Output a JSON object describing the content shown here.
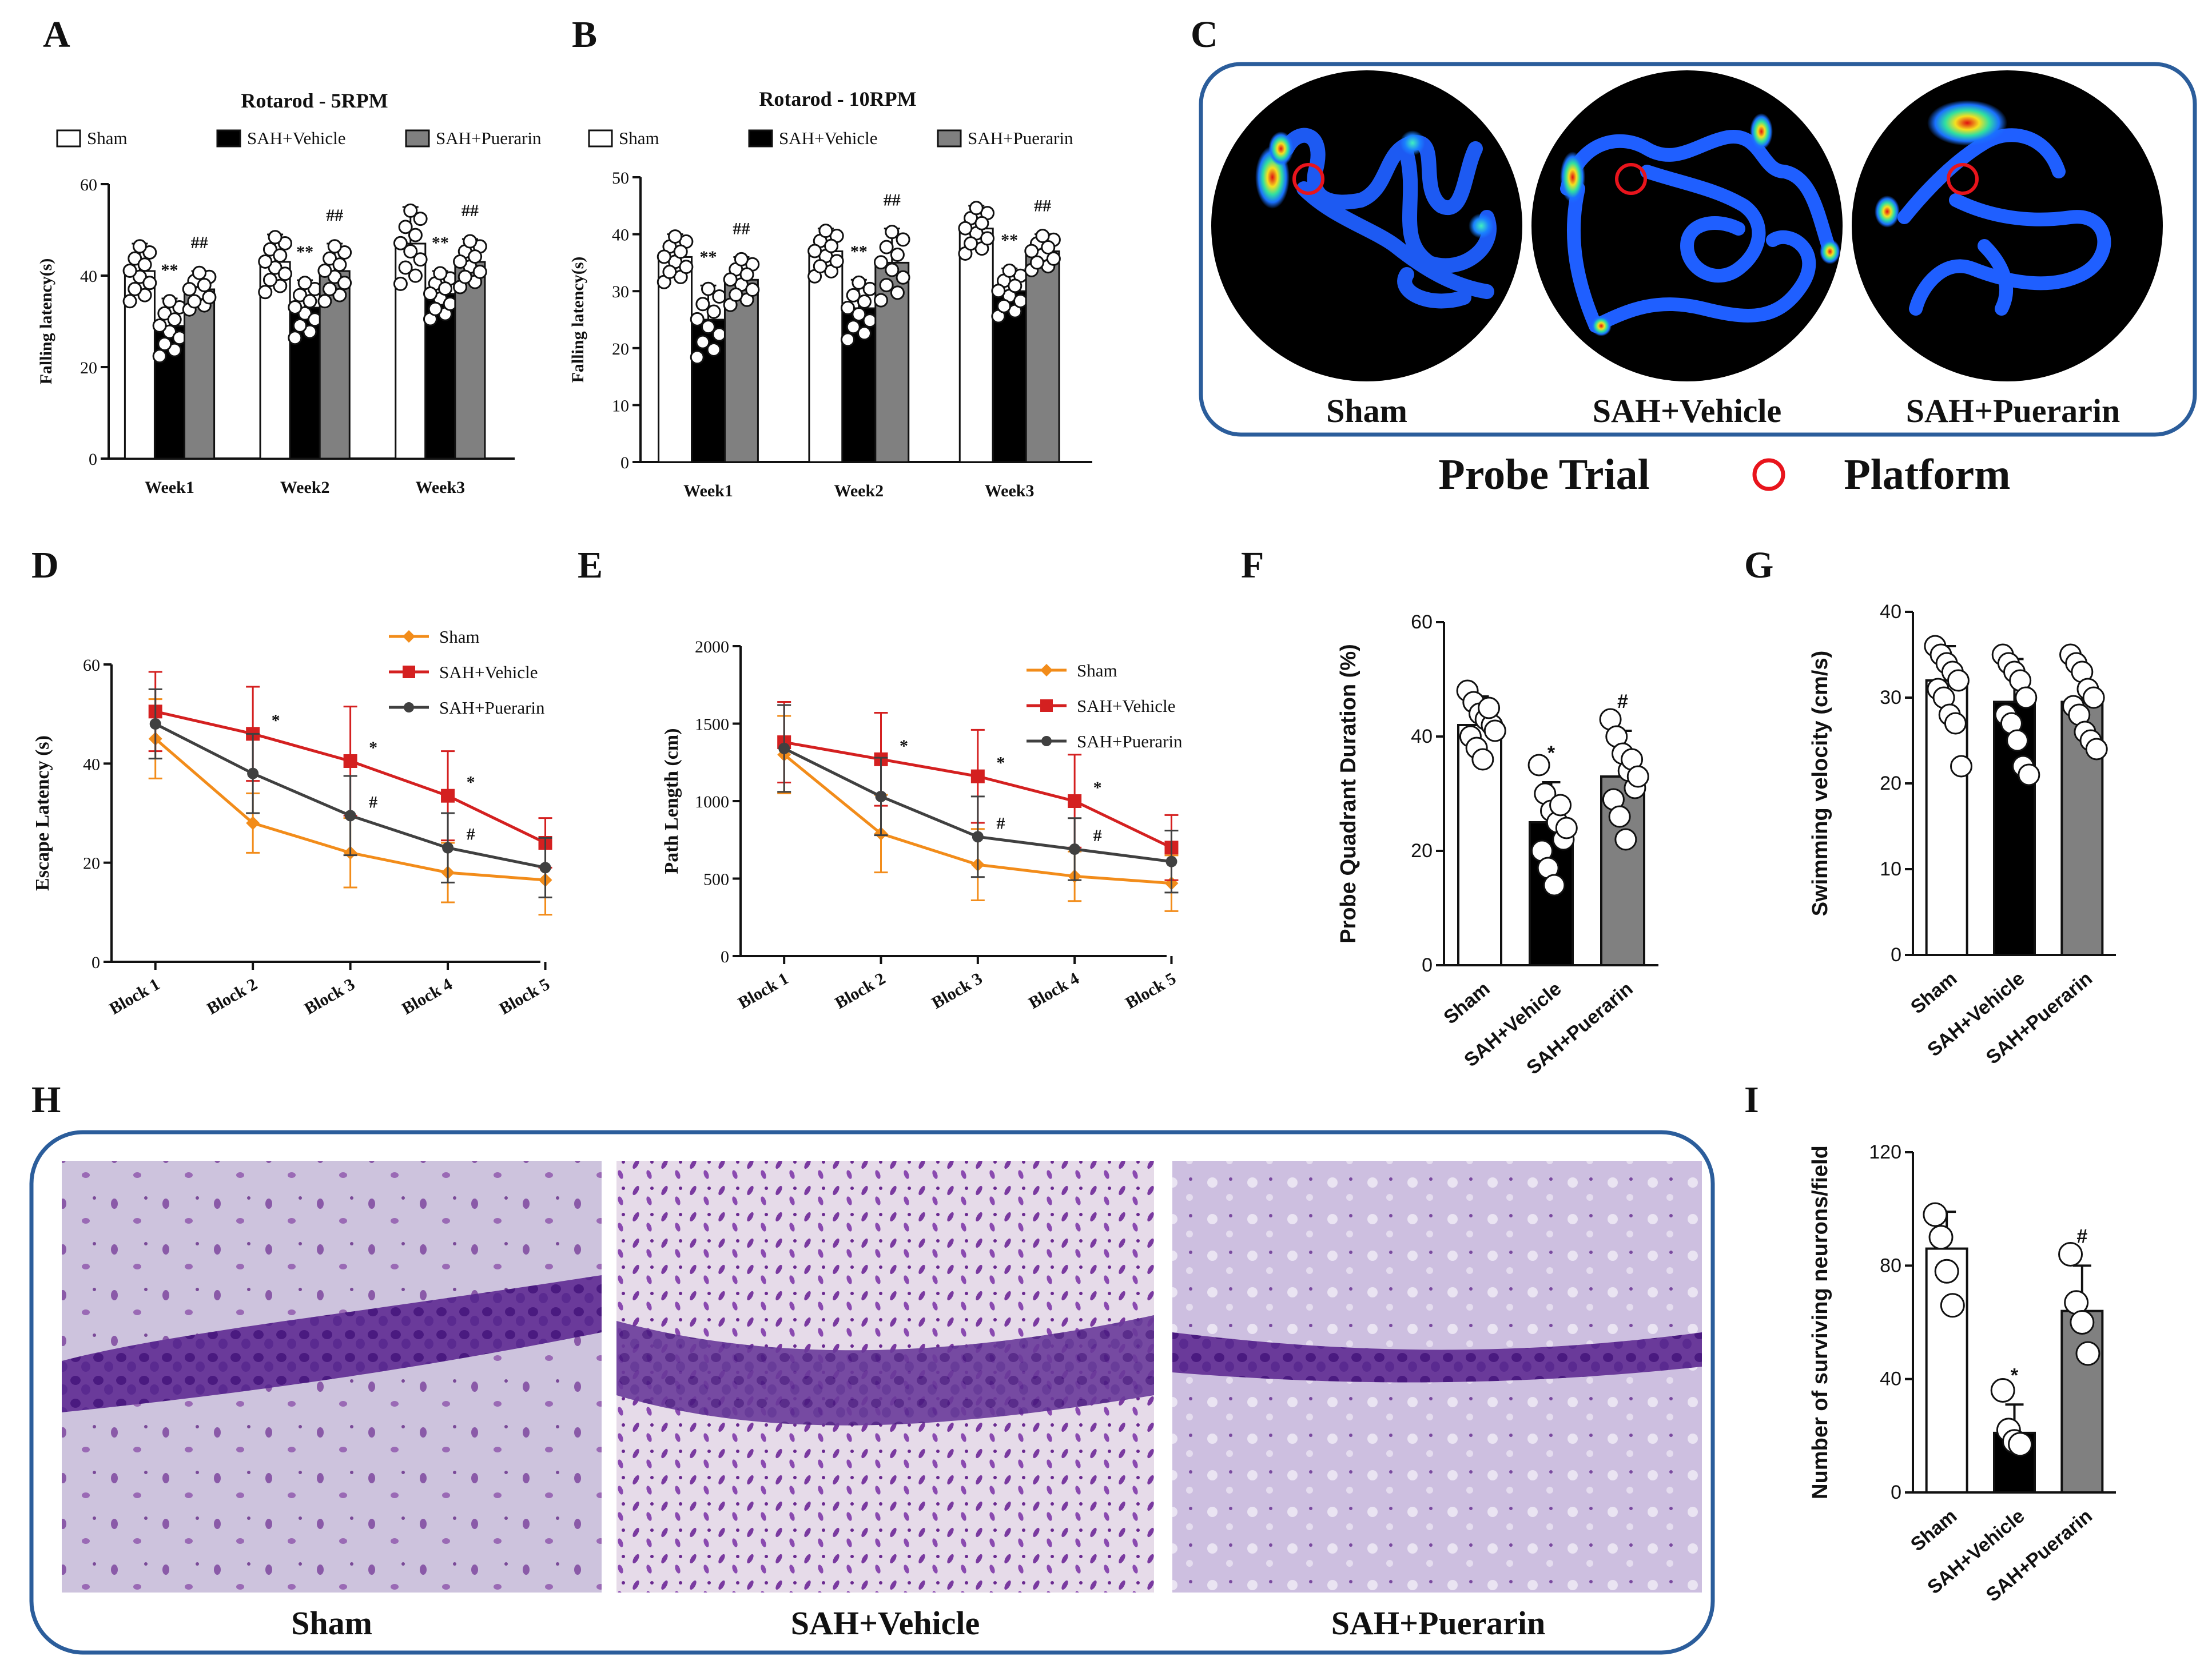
{
  "panels": {
    "A": "A",
    "B": "B",
    "C": "C",
    "D": "D",
    "E": "E",
    "F": "F",
    "G": "G",
    "H": "H",
    "I": "I"
  },
  "groups": [
    "Sham",
    "SAH+Vehicle",
    "SAH+Puerarin"
  ],
  "colors": {
    "sham": "#ffffff",
    "vehicle": "#000000",
    "puerarin": "#808080",
    "line_sham": "#f28c1a",
    "line_vehicle": "#d42020",
    "line_puerarin": "#404040",
    "frame": "#2b5d9b",
    "platform": "#e8141c"
  },
  "heatmap": {
    "labels": [
      "Sham",
      "SAH+Vehicle",
      "SAH+Puerarin"
    ],
    "footer_left": "Probe Trial",
    "footer_right": "Platform"
  },
  "histology": {
    "labels": [
      "Sham",
      "SAH+Vehicle",
      "SAH+Puerarin"
    ]
  },
  "chart_data": [
    {
      "id": "A",
      "type": "bar",
      "title": "Rotarod - 5RPM",
      "ylabel": "Falling latency(s)",
      "xlabel": "",
      "categories": [
        "Week1",
        "Week2",
        "Week3"
      ],
      "ylim": [
        0,
        60
      ],
      "yticks": [
        0,
        20,
        40,
        60
      ],
      "legend": [
        "Sham",
        "SAH+Vehicle",
        "SAH+Puerarin"
      ],
      "series": [
        {
          "name": "Sham",
          "values": [
            41,
            43,
            47
          ],
          "err": [
            6,
            6,
            8
          ]
        },
        {
          "name": "SAH+Vehicle",
          "values": [
            29,
            33,
            36
          ],
          "err": [
            6,
            6,
            5
          ]
        },
        {
          "name": "SAH+Puerarin",
          "values": [
            37,
            41,
            43
          ],
          "err": [
            4,
            6,
            5
          ]
        }
      ],
      "annotations": [
        [
          "",
          "**",
          "##"
        ],
        [
          "",
          "**",
          "##"
        ],
        [
          "",
          "**",
          "##"
        ]
      ]
    },
    {
      "id": "B",
      "type": "bar",
      "title": "Rotarod - 10RPM",
      "ylabel": "Falling latency(s)",
      "xlabel": "",
      "categories": [
        "Week1",
        "Week2",
        "Week3"
      ],
      "ylim": [
        0,
        50
      ],
      "yticks": [
        0,
        10,
        20,
        30,
        40,
        50
      ],
      "legend": [
        "Sham",
        "SAH+Vehicle",
        "SAH+Puerarin"
      ],
      "series": [
        {
          "name": "Sham",
          "values": [
            36,
            37,
            41
          ],
          "err": [
            4,
            4,
            4
          ]
        },
        {
          "name": "SAH+Vehicle",
          "values": [
            25,
            27,
            30
          ],
          "err": [
            6,
            5,
            4
          ]
        },
        {
          "name": "SAH+Puerarin",
          "values": [
            32,
            35,
            37
          ],
          "err": [
            4,
            6,
            3
          ]
        }
      ],
      "annotations": [
        [
          "",
          "**",
          "##"
        ],
        [
          "",
          "**",
          "##"
        ],
        [
          "",
          "**",
          "##"
        ]
      ]
    },
    {
      "id": "D",
      "type": "line",
      "title": "",
      "ylabel": "Escape Latency (s)",
      "xlabel": "",
      "x": [
        "Block 1",
        "Block 2",
        "Block 3",
        "Block 4",
        "Block 5"
      ],
      "ylim": [
        0,
        60
      ],
      "yticks": [
        0,
        20,
        40,
        60
      ],
      "series": [
        {
          "name": "Sham",
          "values": [
            45,
            28,
            22,
            18,
            16.5
          ],
          "err": [
            8,
            6,
            7,
            6,
            7
          ]
        },
        {
          "name": "SAH+Vehicle",
          "values": [
            50.5,
            46,
            40.5,
            33.5,
            24
          ],
          "err": [
            8,
            9.5,
            11,
            9,
            5
          ]
        },
        {
          "name": "SAH+Puerarin",
          "values": [
            48,
            38,
            29.5,
            23,
            19
          ],
          "err": [
            7,
            8,
            8,
            7,
            6
          ]
        }
      ],
      "annotations": [
        {
          "x": "Block 2",
          "text": "*"
        },
        {
          "x": "Block 3",
          "text": "*"
        },
        {
          "x": "Block 4",
          "text": "*"
        },
        {
          "x": "Block 3",
          "text": "#"
        },
        {
          "x": "Block 4",
          "text": "#"
        }
      ]
    },
    {
      "id": "E",
      "type": "line",
      "title": "",
      "ylabel": "Path Length (cm)",
      "xlabel": "",
      "x": [
        "Block 1",
        "Block 2",
        "Block 3",
        "Block 4",
        "Block 5"
      ],
      "ylim": [
        0,
        2000
      ],
      "yticks": [
        0,
        500,
        1000,
        1500,
        2000
      ],
      "series": [
        {
          "name": "Sham",
          "values": [
            1300,
            790,
            590,
            515,
            470
          ],
          "err": [
            250,
            250,
            230,
            160,
            180
          ]
        },
        {
          "name": "SAH+Vehicle",
          "values": [
            1380,
            1270,
            1160,
            1000,
            700
          ],
          "err": [
            260,
            300,
            300,
            300,
            210
          ]
        },
        {
          "name": "SAH+Puerarin",
          "values": [
            1340,
            1030,
            770,
            690,
            610
          ],
          "err": [
            280,
            250,
            260,
            200,
            200
          ]
        }
      ],
      "annotations": [
        {
          "x": "Block 2",
          "text": "*"
        },
        {
          "x": "Block 3",
          "text": "*"
        },
        {
          "x": "Block 4",
          "text": "*"
        },
        {
          "x": "Block 3",
          "text": "#"
        },
        {
          "x": "Block 4",
          "text": "#"
        }
      ]
    },
    {
      "id": "F",
      "type": "bar",
      "title": "",
      "ylabel": "Probe Quadrant Duration (%)",
      "xlabel": "",
      "categories": [
        "Sham",
        "SAH+Vehicle",
        "SAH+Puerarin"
      ],
      "ylim": [
        0,
        60
      ],
      "yticks": [
        0,
        20,
        40,
        60
      ],
      "values": [
        42,
        25,
        33
      ],
      "err": [
        5,
        7,
        8
      ],
      "points": [
        [
          48,
          46,
          44,
          43,
          42,
          40,
          38,
          36,
          45,
          41
        ],
        [
          35,
          30,
          27,
          25,
          22,
          20,
          17,
          14,
          28,
          24
        ],
        [
          43,
          40,
          37,
          34,
          31,
          29,
          26,
          22,
          36,
          33
        ]
      ],
      "annotations": [
        "",
        "*",
        "#"
      ]
    },
    {
      "id": "G",
      "type": "bar",
      "title": "",
      "ylabel": "Swimming velocity (cm/s)",
      "xlabel": "",
      "categories": [
        "Sham",
        "SAH+Vehicle",
        "SAH+Puerarin"
      ],
      "ylim": [
        0,
        40
      ],
      "yticks": [
        0,
        10,
        20,
        30,
        40
      ],
      "values": [
        32,
        29.5,
        29.5
      ],
      "err": [
        4,
        5,
        4
      ],
      "points": [
        [
          36,
          35,
          34,
          33,
          32,
          31,
          30,
          28,
          27,
          22
        ],
        [
          35,
          34,
          33,
          32,
          30,
          28,
          27,
          25,
          22,
          21
        ],
        [
          35,
          34,
          33,
          31,
          30,
          29,
          28,
          26,
          25,
          24
        ]
      ],
      "annotations": [
        "",
        "",
        ""
      ]
    },
    {
      "id": "I",
      "type": "bar",
      "title": "",
      "ylabel": "Number of surviving neurons/field",
      "xlabel": "",
      "categories": [
        "Sham",
        "SAH+Vehicle",
        "SAH+Puerarin"
      ],
      "ylim": [
        0,
        120
      ],
      "yticks": [
        0,
        40,
        80,
        120
      ],
      "values": [
        86,
        21,
        64
      ],
      "err": [
        13,
        10,
        16
      ],
      "points": [
        [
          98,
          90,
          78,
          66
        ],
        [
          36,
          22,
          18,
          17
        ],
        [
          84,
          67,
          60,
          49
        ]
      ],
      "annotations": [
        "",
        "*",
        "#"
      ]
    }
  ]
}
